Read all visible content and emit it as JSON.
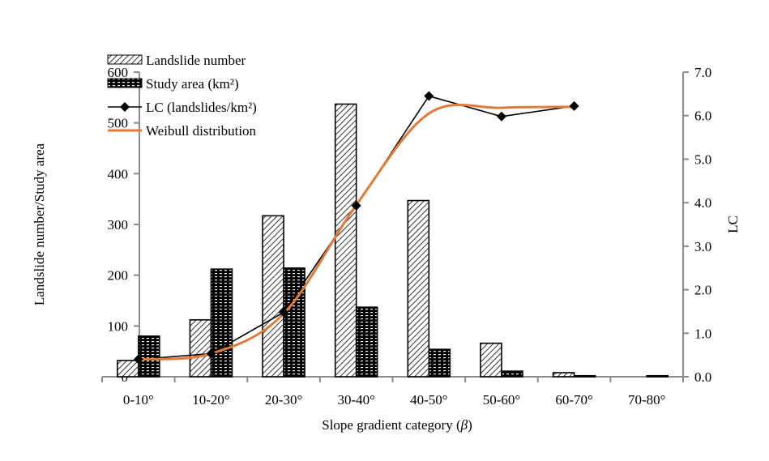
{
  "chart_data": {
    "type": "bar",
    "title": "",
    "xlabel": "Slope gradient category (β)",
    "ylabel": "Landslide number/Study area",
    "y2label": "LC",
    "categories": [
      "0-10°",
      "10-20°",
      "20-30°",
      "30-40°",
      "40-50°",
      "50-60°",
      "60-70°",
      "70-80°"
    ],
    "ylim": [
      0,
      600
    ],
    "y_ticks": [
      "0",
      "100",
      "200",
      "300",
      "400",
      "500",
      "600"
    ],
    "y2lim": [
      0,
      7
    ],
    "y2_ticks": [
      "0.0",
      "1.0",
      "2.0",
      "3.0",
      "4.0",
      "5.0",
      "6.0",
      "7.0"
    ],
    "grid": false,
    "legend_position": "top-left",
    "series": [
      {
        "name": "Landslide number",
        "kind": "bar",
        "axis": "left",
        "pattern": "diagonal-hatch",
        "values": [
          32,
          112,
          317,
          537,
          347,
          66,
          8,
          0
        ]
      },
      {
        "name": "Study area (km²)",
        "kind": "bar",
        "axis": "left",
        "pattern": "dense-brick",
        "values": [
          80,
          212,
          214,
          137,
          54,
          11,
          2,
          2
        ]
      },
      {
        "name": "LC (landslides/km²)",
        "kind": "line-marker",
        "axis": "right",
        "color": "#000000",
        "values": [
          0.4,
          0.53,
          1.48,
          3.93,
          6.45,
          5.98,
          6.22,
          null
        ]
      },
      {
        "name": "Weibull distribution",
        "kind": "smooth-line",
        "axis": "right",
        "color": "#E07B39",
        "values": [
          0.4,
          0.53,
          1.45,
          3.95,
          6.05,
          6.18,
          6.2,
          null
        ]
      }
    ]
  }
}
